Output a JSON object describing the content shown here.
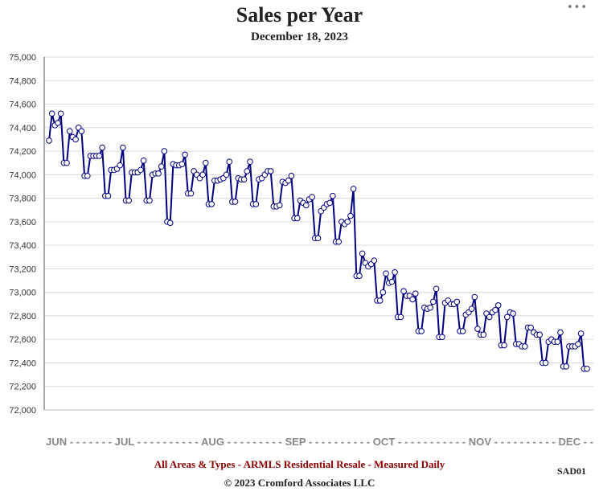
{
  "menu_icon": "ellipsis-icon",
  "footer": {
    "source": "All Areas & Types - ARMLS Residential Resale - Measured Daily",
    "copyright": "© 2023 Cromford Associates LLC",
    "code": "SAD01"
  },
  "chart_data": {
    "type": "line",
    "title": "Sales per Year",
    "subtitle": "December 18, 2023",
    "ylim": [
      72000,
      75000
    ],
    "yticks": [
      "72,000",
      "72,200",
      "72,400",
      "72,600",
      "72,800",
      "73,000",
      "73,200",
      "73,400",
      "73,600",
      "73,800",
      "74,000",
      "74,200",
      "74,400",
      "74,600",
      "74,800",
      "75,000"
    ],
    "ytick_values": [
      72000,
      72200,
      72400,
      72600,
      72800,
      73000,
      73200,
      73400,
      73600,
      73800,
      74000,
      74200,
      74400,
      74600,
      74800,
      75000
    ],
    "xtick_labels": [
      "JUN",
      "JUL",
      "AUG",
      "SEP",
      "OCT",
      "NOV",
      "DEC"
    ],
    "xtick_index": [
      0,
      30,
      61,
      92,
      122,
      153,
      183
    ],
    "x_axis_text": "JUN - - - - - - - JUL - - - - - - - - - - AUG - - - - - - - - - SEP - - - - - - - - - - OCT - - - - - - - - - - - NOV - - - - - - - - - - DEC - -",
    "grid": true,
    "legend": "none",
    "line_color": "#000080",
    "marker_fill": "#ffffff",
    "x_start": "2023-06-01",
    "x_end": "2023-12-17",
    "values": [
      74290,
      74520,
      74420,
      74440,
      74520,
      74100,
      74100,
      74370,
      74320,
      74300,
      74400,
      74370,
      73990,
      73990,
      74160,
      74160,
      74160,
      74160,
      74230,
      73820,
      73820,
      74040,
      74040,
      74050,
      74080,
      74230,
      73780,
      73780,
      74020,
      74020,
      74020,
      74040,
      74120,
      73780,
      73780,
      74000,
      74010,
      74010,
      74070,
      74200,
      73600,
      73590,
      74090,
      74080,
      74080,
      74090,
      74170,
      73840,
      73840,
      74030,
      74000,
      73970,
      74000,
      74100,
      73750,
      73750,
      73950,
      73950,
      73960,
      73970,
      74000,
      74110,
      73770,
      73770,
      73970,
      73960,
      73960,
      74030,
      74110,
      73750,
      73750,
      73960,
      73970,
      74000,
      74030,
      74030,
      73730,
      73730,
      73740,
      73940,
      73930,
      73950,
      73990,
      73630,
      73630,
      73780,
      73760,
      73740,
      73790,
      73810,
      73460,
      73460,
      73690,
      73720,
      73750,
      73760,
      73820,
      73430,
      73430,
      73600,
      73580,
      73600,
      73650,
      73880,
      73140,
      73140,
      73330,
      73250,
      73220,
      73240,
      73270,
      72930,
      72930,
      73000,
      73160,
      73080,
      73090,
      73170,
      72790,
      72790,
      73010,
      72970,
      72970,
      72940,
      72990,
      72670,
      72670,
      72870,
      72860,
      72870,
      72920,
      73030,
      72620,
      72620,
      72910,
      72930,
      72900,
      72900,
      72920,
      72670,
      72670,
      72810,
      72830,
      72860,
      72960,
      72690,
      72640,
      72640,
      72820,
      72790,
      72830,
      72850,
      72890,
      72550,
      72550,
      72790,
      72830,
      72820,
      72560,
      72560,
      72540,
      72540,
      72700,
      72700,
      72660,
      72640,
      72640,
      72400,
      72400,
      72580,
      72600,
      72580,
      72580,
      72660,
      72370,
      72370,
      72540,
      72540,
      72540,
      72560,
      72650,
      72350,
      72350
    ]
  }
}
